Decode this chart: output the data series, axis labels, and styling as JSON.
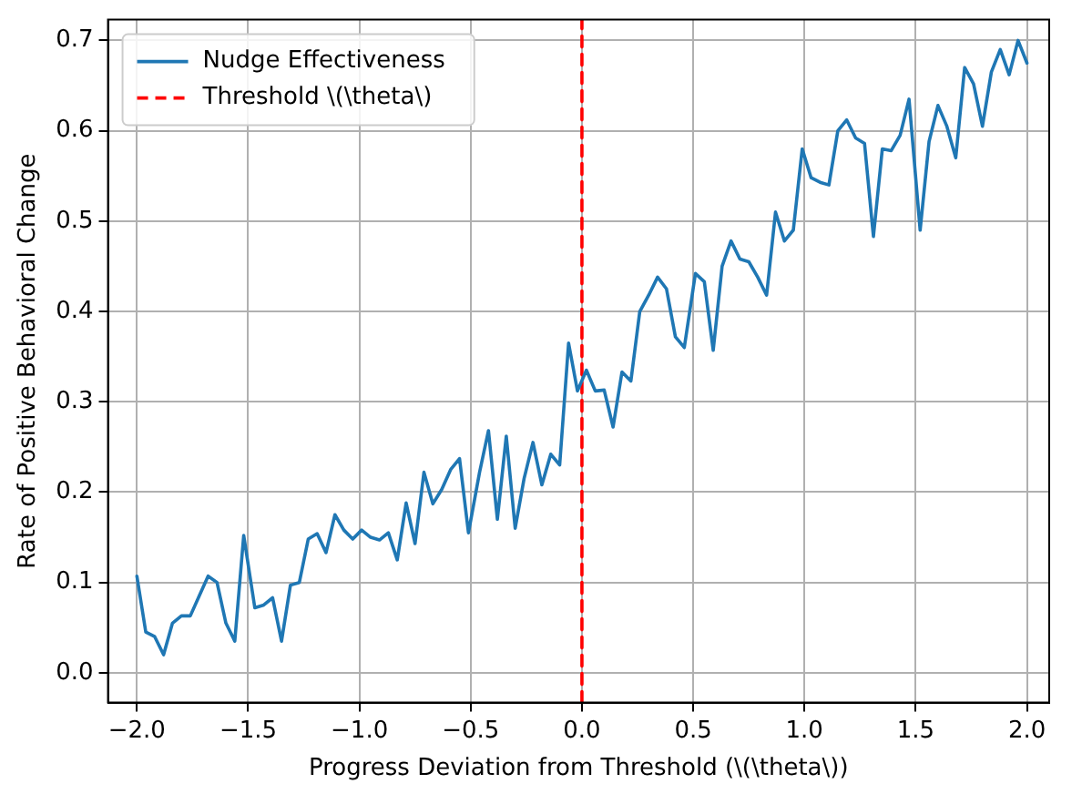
{
  "chart_data": {
    "type": "line",
    "xlabel": "Progress Deviation from Threshold (\\(\\theta\\))",
    "ylabel": "Rate of Positive Behavioral Change",
    "x": [
      -2.0,
      -1.96,
      -1.92,
      -1.88,
      -1.84,
      -1.8,
      -1.76,
      -1.72,
      -1.68,
      -1.64,
      -1.6,
      -1.56,
      -1.52,
      -1.47,
      -1.43,
      -1.39,
      -1.35,
      -1.31,
      -1.27,
      -1.23,
      -1.19,
      -1.15,
      -1.11,
      -1.07,
      -1.03,
      -0.99,
      -0.95,
      -0.91,
      -0.87,
      -0.83,
      -0.79,
      -0.75,
      -0.71,
      -0.67,
      -0.63,
      -0.59,
      -0.55,
      -0.51,
      -0.46,
      -0.42,
      -0.38,
      -0.34,
      -0.3,
      -0.26,
      -0.22,
      -0.18,
      -0.14,
      -0.1,
      -0.06,
      -0.02,
      0.02,
      0.06,
      0.1,
      0.14,
      0.18,
      0.22,
      0.26,
      0.3,
      0.34,
      0.38,
      0.42,
      0.46,
      0.51,
      0.55,
      0.59,
      0.63,
      0.67,
      0.71,
      0.75,
      0.79,
      0.83,
      0.87,
      0.91,
      0.95,
      0.99,
      1.03,
      1.07,
      1.11,
      1.15,
      1.19,
      1.23,
      1.27,
      1.31,
      1.35,
      1.39,
      1.43,
      1.47,
      1.52,
      1.56,
      1.6,
      1.64,
      1.68,
      1.72,
      1.76,
      1.8,
      1.84,
      1.88,
      1.92,
      1.96,
      2.0
    ],
    "series": [
      {
        "name": "Nudge Effectiveness",
        "color": "#1f77b4",
        "values": [
          0.107,
          0.045,
          0.04,
          0.02,
          0.055,
          0.063,
          0.063,
          0.085,
          0.107,
          0.1,
          0.055,
          0.035,
          0.152,
          0.072,
          0.075,
          0.083,
          0.035,
          0.097,
          0.1,
          0.148,
          0.154,
          0.133,
          0.175,
          0.158,
          0.148,
          0.158,
          0.15,
          0.147,
          0.155,
          0.125,
          0.188,
          0.143,
          0.222,
          0.187,
          0.203,
          0.225,
          0.237,
          0.155,
          0.222,
          0.268,
          0.17,
          0.262,
          0.16,
          0.215,
          0.255,
          0.208,
          0.242,
          0.23,
          0.365,
          0.312,
          0.335,
          0.312,
          0.313,
          0.272,
          0.333,
          0.323,
          0.4,
          0.418,
          0.438,
          0.425,
          0.372,
          0.36,
          0.442,
          0.433,
          0.357,
          0.45,
          0.478,
          0.458,
          0.455,
          0.438,
          0.418,
          0.51,
          0.478,
          0.49,
          0.58,
          0.548,
          0.543,
          0.54,
          0.6,
          0.612,
          0.592,
          0.586,
          0.483,
          0.58,
          0.578,
          0.595,
          0.635,
          0.49,
          0.588,
          0.628,
          0.605,
          0.57,
          0.67,
          0.652,
          0.605,
          0.665,
          0.69,
          0.662,
          0.7,
          0.675
        ]
      },
      {
        "name": "Threshold \\(\\theta\\)",
        "type": "line",
        "color": "#ff0000",
        "line_style": "dashed",
        "x": [
          0,
          0
        ],
        "values": [
          -0.033,
          0.723
        ]
      }
    ],
    "xlim": [
      -2.13,
      2.1
    ],
    "ylim": [
      -0.033,
      0.723
    ],
    "xticks": [
      {
        "value": -2,
        "label": "−2.0"
      },
      {
        "value": -1.5,
        "label": "−1.5"
      },
      {
        "value": -1,
        "label": "−1.0"
      },
      {
        "value": -0.5,
        "label": "−0.5"
      },
      {
        "value": 0,
        "label": "0.0"
      },
      {
        "value": 0.5,
        "label": "0.5"
      },
      {
        "value": 1,
        "label": "1.0"
      },
      {
        "value": 1.5,
        "label": "1.5"
      },
      {
        "value": 2,
        "label": "2.0"
      }
    ],
    "yticks": [
      {
        "value": 0,
        "label": "0.0"
      },
      {
        "value": 0.1,
        "label": "0.1"
      },
      {
        "value": 0.2,
        "label": "0.2"
      },
      {
        "value": 0.3,
        "label": "0.3"
      },
      {
        "value": 0.4,
        "label": "0.4"
      },
      {
        "value": 0.5,
        "label": "0.5"
      },
      {
        "value": 0.6,
        "label": "0.6"
      },
      {
        "value": 0.7,
        "label": "0.7"
      }
    ],
    "grid": true,
    "legend": "top left",
    "marker": "none",
    "line_style": "solid"
  }
}
